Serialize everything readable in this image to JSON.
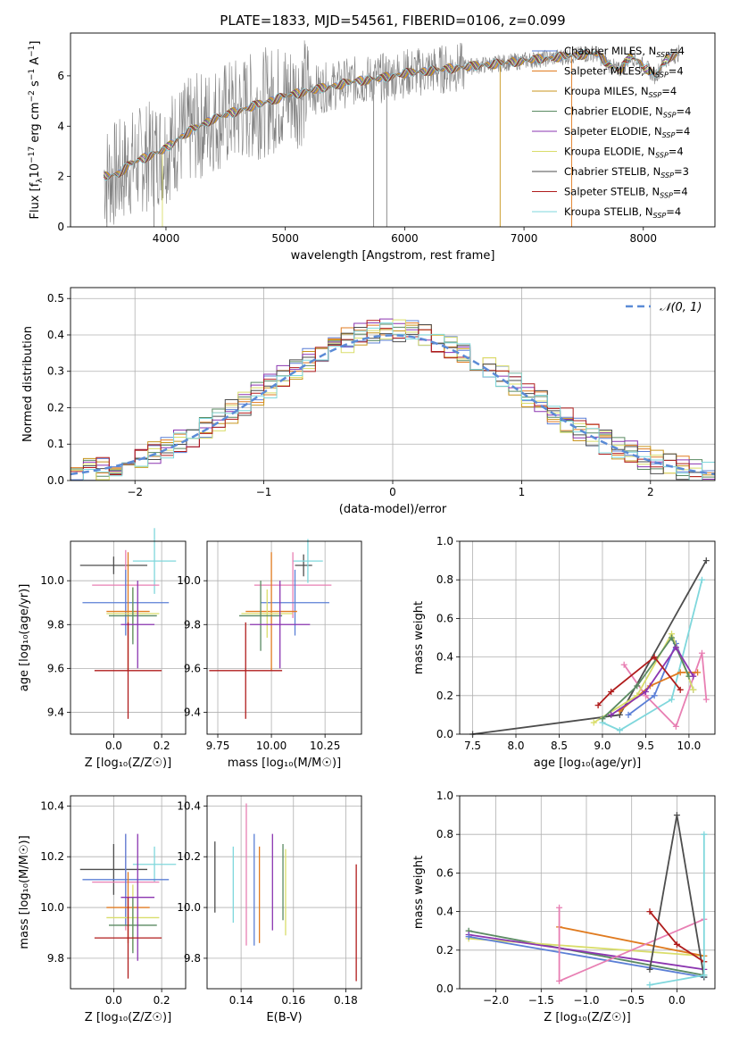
{
  "figure": {
    "title": "PLATE=1833, MJD=54561, FIBERID=0106, z=0.099"
  },
  "models": [
    {
      "label": "Chabrier MILES",
      "n_ssp": "4",
      "color": "#5b7fd6"
    },
    {
      "label": "Salpeter MILES",
      "n_ssp": "4",
      "color": "#e07b20"
    },
    {
      "label": "Kroupa MILES",
      "n_ssp": "4",
      "color": "#c8951c"
    },
    {
      "label": "Chabrier ELODIE",
      "n_ssp": "4",
      "color": "#5a8a62"
    },
    {
      "label": "Salpeter ELODIE",
      "n_ssp": "4",
      "color": "#8b35b0"
    },
    {
      "label": "Kroupa ELODIE",
      "n_ssp": "4",
      "color": "#d9dd6a"
    },
    {
      "label": "Chabrier STELIB",
      "n_ssp": "3",
      "color": "#4d4d4d"
    },
    {
      "label": "Salpeter STELIB",
      "n_ssp": "4",
      "color": "#b01c1c"
    },
    {
      "label": "Kroupa STELIB",
      "n_ssp": "4",
      "color": "#7fd7dc"
    }
  ],
  "extra_colors": {
    "pink": "#e87fb3",
    "data_gray": "#808080",
    "normal_curve": "#5b8bd6",
    "grid": "#b0b0b0"
  },
  "chart_data": [
    {
      "id": "spectrum",
      "type": "line",
      "xlabel": "wavelength [Angstrom, rest frame]",
      "ylabel": "Flux [f",
      "ylabel_sub": "λ",
      "ylabel_mid": "10",
      "ylabel_exp1": "−17",
      "ylabel_mid2": " erg cm",
      "ylabel_exp2": "−2",
      "ylabel_mid3": " s",
      "ylabel_exp3": "−1",
      "ylabel_end": " A",
      "ylabel_exp4": "−1",
      "ylabel_close": "]",
      "xlim": [
        3200,
        8600
      ],
      "ylim": [
        0,
        7.7
      ],
      "xticks": [
        "4000",
        "5000",
        "6000",
        "7000",
        "8000"
      ],
      "yticks": [
        "0",
        "2",
        "4",
        "6"
      ],
      "xtick_values": [
        4000,
        5000,
        6000,
        7000,
        8000
      ],
      "ytick_values": [
        0,
        2,
        4,
        6
      ],
      "continuum": {
        "x": [
          3480,
          3600,
          3700,
          3800,
          3900,
          4000,
          4100,
          4200,
          4400,
          4600,
          4800,
          5000,
          5200,
          5400,
          5600,
          5800,
          6000,
          6200,
          6400,
          6600,
          6800,
          7000,
          7200,
          7400,
          7600,
          7700,
          7800,
          7900,
          8000,
          8100,
          8200,
          8300
        ],
        "y": [
          2.0,
          2.1,
          2.5,
          2.7,
          2.9,
          3.1,
          3.5,
          3.8,
          4.3,
          4.6,
          4.9,
          5.2,
          5.4,
          5.6,
          5.8,
          5.9,
          6.1,
          6.2,
          6.3,
          6.4,
          6.5,
          6.6,
          6.7,
          6.8,
          6.9,
          6.5,
          6.2,
          6.8,
          6.4,
          6.0,
          6.7,
          6.9
        ]
      },
      "grid": false,
      "legend": "upper right"
    },
    {
      "id": "residuals",
      "type": "histogram",
      "xlabel": "(data-model)/error",
      "ylabel": "Normed distribution",
      "xlim": [
        -2.5,
        2.5
      ],
      "ylim": [
        0,
        0.53
      ],
      "xticks": [
        "−2",
        "−1",
        "0",
        "1",
        "2"
      ],
      "xtick_values": [
        -2,
        -1,
        0,
        1,
        2
      ],
      "yticks": [
        "0.0",
        "0.1",
        "0.2",
        "0.3",
        "0.4",
        "0.5"
      ],
      "ytick_values": [
        0,
        0.1,
        0.2,
        0.3,
        0.4,
        0.5
      ],
      "bin_width": 0.1,
      "legend_label": "𝒩(0, 1)",
      "grid": true,
      "legend": "upper right"
    },
    {
      "id": "age_vs_Z",
      "type": "errorbar",
      "xlabel": "Z [log₁₀(Z/Z☉)]",
      "ylabel": "age  [log₁₀(age/yr)]",
      "xlim": [
        -0.18,
        0.3
      ],
      "ylim": [
        9.3,
        10.18
      ],
      "xticks": [
        "0.0",
        "0.2"
      ],
      "xtick_values": [
        0.0,
        0.2
      ],
      "yticks": [
        "9.4",
        "9.6",
        "9.8",
        "10.0"
      ],
      "ytick_values": [
        9.4,
        9.6,
        9.8,
        10.0
      ],
      "points": [
        {
          "color": "#4d4d4d",
          "x": 0.0,
          "xerr": 0.14,
          "y": 10.07,
          "yerr": 0.04
        },
        {
          "color": "#7fd7dc",
          "x": 0.17,
          "xerr": 0.09,
          "y": 10.09,
          "yerr": 0.15
        },
        {
          "color": "#e87fb3",
          "x": 0.05,
          "xerr": 0.14,
          "y": 9.98,
          "yerr": 0.16
        },
        {
          "color": "#5b7fd6",
          "x": 0.05,
          "xerr": 0.18,
          "y": 9.9,
          "yerr": 0.15
        },
        {
          "color": "#e07b20",
          "x": 0.06,
          "xerr": 0.09,
          "y": 9.86,
          "yerr": 0.27
        },
        {
          "color": "#d9dd6a",
          "x": 0.08,
          "xerr": 0.11,
          "y": 9.85,
          "yerr": 0.12
        },
        {
          "color": "#5a8a62",
          "x": 0.08,
          "xerr": 0.1,
          "y": 9.84,
          "yerr": 0.13
        },
        {
          "color": "#8b35b0",
          "x": 0.1,
          "xerr": 0.07,
          "y": 9.8,
          "yerr": 0.2
        },
        {
          "color": "#b01c1c",
          "x": 0.06,
          "xerr": 0.14,
          "y": 9.59,
          "yerr": 0.22
        }
      ]
    },
    {
      "id": "age_vs_mass",
      "type": "errorbar",
      "xlabel": "mass [log₁₀(M/M☉)]",
      "ylabel": "",
      "xlim": [
        9.7,
        10.42
      ],
      "ylim": [
        9.3,
        10.18
      ],
      "xticks": [
        "9.75",
        "10.00",
        "10.25"
      ],
      "xtick_values": [
        9.75,
        10.0,
        10.25
      ],
      "yticks": [
        "9.4",
        "9.6",
        "9.8",
        "10.0"
      ],
      "ytick_values": [
        9.4,
        9.6,
        9.8,
        10.0
      ],
      "points": [
        {
          "color": "#4d4d4d",
          "x": 10.15,
          "xerr": 0.04,
          "y": 10.07,
          "yerr": 0.05
        },
        {
          "color": "#7fd7dc",
          "x": 10.17,
          "xerr": 0.07,
          "y": 10.09,
          "yerr": 0.1
        },
        {
          "color": "#e87fb3",
          "x": 10.1,
          "xerr": 0.18,
          "y": 9.98,
          "yerr": 0.15
        },
        {
          "color": "#5b7fd6",
          "x": 10.11,
          "xerr": 0.16,
          "y": 9.9,
          "yerr": 0.15
        },
        {
          "color": "#e07b20",
          "x": 10.0,
          "xerr": 0.12,
          "y": 9.86,
          "yerr": 0.27
        },
        {
          "color": "#d9dd6a",
          "x": 9.98,
          "xerr": 0.12,
          "y": 9.85,
          "yerr": 0.11
        },
        {
          "color": "#5a8a62",
          "x": 9.95,
          "xerr": 0.1,
          "y": 9.84,
          "yerr": 0.16
        },
        {
          "color": "#8b35b0",
          "x": 10.04,
          "xerr": 0.14,
          "y": 9.8,
          "yerr": 0.2
        },
        {
          "color": "#b01c1c",
          "x": 9.88,
          "xerr": 0.17,
          "y": 9.59,
          "yerr": 0.22
        }
      ]
    },
    {
      "id": "weight_vs_age",
      "type": "line",
      "xlabel": "age  [log₁₀(age/yr)]",
      "ylabel": "mass weight",
      "xlim": [
        7.35,
        10.3
      ],
      "ylim": [
        0,
        1.0
      ],
      "xticks": [
        "7.5",
        "8.0",
        "8.5",
        "9.0",
        "9.5",
        "10.0"
      ],
      "xtick_values": [
        7.5,
        8.0,
        8.5,
        9.0,
        9.5,
        10.0
      ],
      "yticks": [
        "0.0",
        "0.2",
        "0.4",
        "0.6",
        "0.8",
        "1.0"
      ],
      "ytick_values": [
        0,
        0.2,
        0.4,
        0.6,
        0.8,
        1.0
      ],
      "grid": true,
      "series": [
        {
          "color": "#4d4d4d",
          "x": [
            7.5,
            9.2,
            10.2
          ],
          "y": [
            0.0,
            0.1,
            0.9
          ]
        },
        {
          "color": "#7fd7dc",
          "x": [
            9.0,
            9.2,
            9.8,
            10.15
          ],
          "y": [
            0.06,
            0.02,
            0.18,
            0.8
          ]
        },
        {
          "color": "#e87fb3",
          "x": [
            9.25,
            9.5,
            9.85,
            10.15,
            10.2
          ],
          "y": [
            0.36,
            0.2,
            0.04,
            0.42,
            0.18
          ]
        },
        {
          "color": "#5b7fd6",
          "x": [
            9.3,
            9.6,
            9.85,
            10.05
          ],
          "y": [
            0.1,
            0.2,
            0.47,
            0.23
          ]
        },
        {
          "color": "#e07b20",
          "x": [
            9.2,
            9.55,
            9.9,
            10.1
          ],
          "y": [
            0.12,
            0.25,
            0.32,
            0.32
          ]
        },
        {
          "color": "#d9dd6a",
          "x": [
            8.9,
            9.4,
            9.8,
            10.05
          ],
          "y": [
            0.06,
            0.2,
            0.52,
            0.23
          ]
        },
        {
          "color": "#5a8a62",
          "x": [
            9.0,
            9.4,
            9.8,
            10.0
          ],
          "y": [
            0.08,
            0.25,
            0.5,
            0.3
          ]
        },
        {
          "color": "#8b35b0",
          "x": [
            9.1,
            9.5,
            9.85,
            10.05
          ],
          "y": [
            0.1,
            0.22,
            0.45,
            0.3
          ]
        },
        {
          "color": "#b01c1c",
          "x": [
            8.95,
            9.1,
            9.6,
            9.9
          ],
          "y": [
            0.15,
            0.22,
            0.4,
            0.23
          ]
        }
      ]
    },
    {
      "id": "mass_vs_Z",
      "type": "errorbar",
      "xlabel": "Z [log₁₀(Z/Z☉)]",
      "ylabel": "mass [log₁₀(M/M☉)]",
      "xlim": [
        -0.18,
        0.3
      ],
      "ylim": [
        9.68,
        10.44
      ],
      "xticks": [
        "0.0",
        "0.2"
      ],
      "xtick_values": [
        0.0,
        0.2
      ],
      "yticks": [
        "9.8",
        "10.0",
        "10.2",
        "10.4"
      ],
      "ytick_values": [
        9.8,
        10.0,
        10.2,
        10.4
      ],
      "points": [
        {
          "color": "#4d4d4d",
          "x": 0.0,
          "xerr": 0.14,
          "y": 10.15,
          "yerr": 0.1
        },
        {
          "color": "#7fd7dc",
          "x": 0.17,
          "xerr": 0.09,
          "y": 10.17,
          "yerr": 0.07
        },
        {
          "color": "#e87fb3",
          "x": 0.05,
          "xerr": 0.14,
          "y": 10.1,
          "yerr": 0.19
        },
        {
          "color": "#5b7fd6",
          "x": 0.05,
          "xerr": 0.18,
          "y": 10.11,
          "yerr": 0.18
        },
        {
          "color": "#e07b20",
          "x": 0.06,
          "xerr": 0.09,
          "y": 10.0,
          "yerr": 0.14
        },
        {
          "color": "#d9dd6a",
          "x": 0.08,
          "xerr": 0.11,
          "y": 9.96,
          "yerr": 0.13
        },
        {
          "color": "#5a8a62",
          "x": 0.08,
          "xerr": 0.1,
          "y": 9.93,
          "yerr": 0.11
        },
        {
          "color": "#8b35b0",
          "x": 0.1,
          "xerr": 0.07,
          "y": 10.04,
          "yerr": 0.25
        },
        {
          "color": "#b01c1c",
          "x": 0.06,
          "xerr": 0.14,
          "y": 9.88,
          "yerr": 0.16
        }
      ]
    },
    {
      "id": "mass_vs_EBV",
      "type": "errorbar",
      "xlabel": "E(B-V)",
      "ylabel": "",
      "xlim": [
        0.127,
        0.186
      ],
      "ylim": [
        9.68,
        10.44
      ],
      "xticks": [
        "0.14",
        "0.16",
        "0.18"
      ],
      "xtick_values": [
        0.14,
        0.16,
        0.18
      ],
      "yticks": [
        "9.8",
        "10.0",
        "10.2",
        "10.4"
      ],
      "ytick_values": [
        9.8,
        10.0,
        10.2,
        10.4
      ],
      "points": [
        {
          "color": "#4d4d4d",
          "x": 0.13,
          "y": 10.12,
          "yerr": 0.14
        },
        {
          "color": "#7fd7dc",
          "x": 0.137,
          "y": 10.09,
          "yerr": 0.15
        },
        {
          "color": "#e87fb3",
          "x": 0.142,
          "y": 10.13,
          "yerr": 0.28
        },
        {
          "color": "#5b7fd6",
          "x": 0.145,
          "y": 10.07,
          "yerr": 0.22
        },
        {
          "color": "#e07b20",
          "x": 0.147,
          "y": 10.05,
          "yerr": 0.19
        },
        {
          "color": "#8b35b0",
          "x": 0.152,
          "y": 10.1,
          "yerr": 0.19
        },
        {
          "color": "#5a8a62",
          "x": 0.156,
          "y": 10.1,
          "yerr": 0.15
        },
        {
          "color": "#d9dd6a",
          "x": 0.157,
          "y": 10.06,
          "yerr": 0.17
        },
        {
          "color": "#b01c1c",
          "x": 0.184,
          "y": 9.94,
          "yerr": 0.23
        }
      ]
    },
    {
      "id": "weight_vs_Z",
      "type": "line",
      "xlabel": "Z [log₁₀(Z/Z☉)]",
      "ylabel": "mass weight",
      "xlim": [
        -2.4,
        0.42
      ],
      "ylim": [
        0,
        1.0
      ],
      "xticks": [
        "−2.0",
        "−1.5",
        "−1.0",
        "−0.5",
        "0.0"
      ],
      "xtick_values": [
        -2.0,
        -1.5,
        -1.0,
        -0.5,
        0.0
      ],
      "yticks": [
        "0.0",
        "0.2",
        "0.4",
        "0.6",
        "0.8",
        "1.0"
      ],
      "ytick_values": [
        0,
        0.2,
        0.4,
        0.6,
        0.8,
        1.0
      ],
      "grid": true,
      "series": [
        {
          "color": "#5a8a62",
          "x": [
            -2.3,
            0.3
          ],
          "y": [
            0.3,
            0.07
          ]
        },
        {
          "color": "#d9dd6a",
          "x": [
            -2.3,
            0.3
          ],
          "y": [
            0.26,
            0.17
          ]
        },
        {
          "color": "#8b35b0",
          "x": [
            -2.3,
            0.3
          ],
          "y": [
            0.28,
            0.1
          ]
        },
        {
          "color": "#5b7fd6",
          "x": [
            -2.3,
            0.3
          ],
          "y": [
            0.27,
            0.06
          ]
        },
        {
          "color": "#e07b20",
          "x": [
            -1.3,
            0.3
          ],
          "y": [
            0.32,
            0.17
          ]
        },
        {
          "color": "#e87fb3",
          "x": [
            -1.3,
            -1.3,
            0.3
          ],
          "y": [
            0.42,
            0.04,
            0.36
          ]
        },
        {
          "color": "#4d4d4d",
          "x": [
            -0.3,
            0.0,
            0.3
          ],
          "y": [
            0.1,
            0.9,
            0.06
          ]
        },
        {
          "color": "#b01c1c",
          "x": [
            -0.3,
            0.0,
            0.3
          ],
          "y": [
            0.4,
            0.23,
            0.14
          ]
        },
        {
          "color": "#7fd7dc",
          "x": [
            -0.3,
            0.3,
            0.3
          ],
          "y": [
            0.02,
            0.07,
            0.8
          ]
        }
      ]
    }
  ]
}
